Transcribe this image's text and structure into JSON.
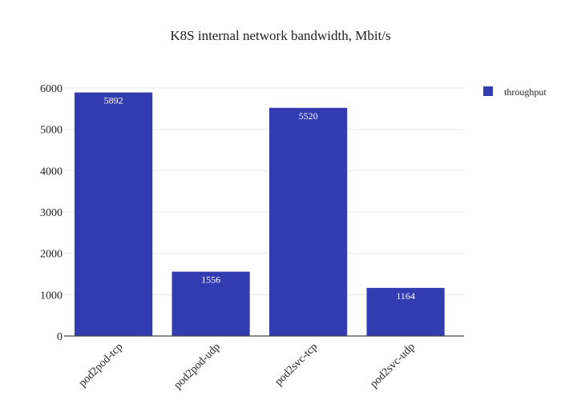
{
  "chart_data": {
    "type": "bar",
    "title": "K8S internal network bandwidth, Mbit/s",
    "xlabel": "",
    "ylabel": "",
    "categories": [
      "pod2pod-tcp",
      "pod2pod-udp",
      "pod2svc-tcp",
      "pod2svc-udp"
    ],
    "series": [
      {
        "name": "throughput",
        "values": [
          5892,
          1556,
          5520,
          1164
        ],
        "color": "#323cb0"
      }
    ],
    "ylim": [
      0,
      6000
    ],
    "yticks": [
      0,
      1000,
      2000,
      3000,
      4000,
      5000,
      6000
    ],
    "grid": true,
    "legend_position": "top-right",
    "data_labels": "inside-top",
    "x_tick_rotation": -45
  }
}
